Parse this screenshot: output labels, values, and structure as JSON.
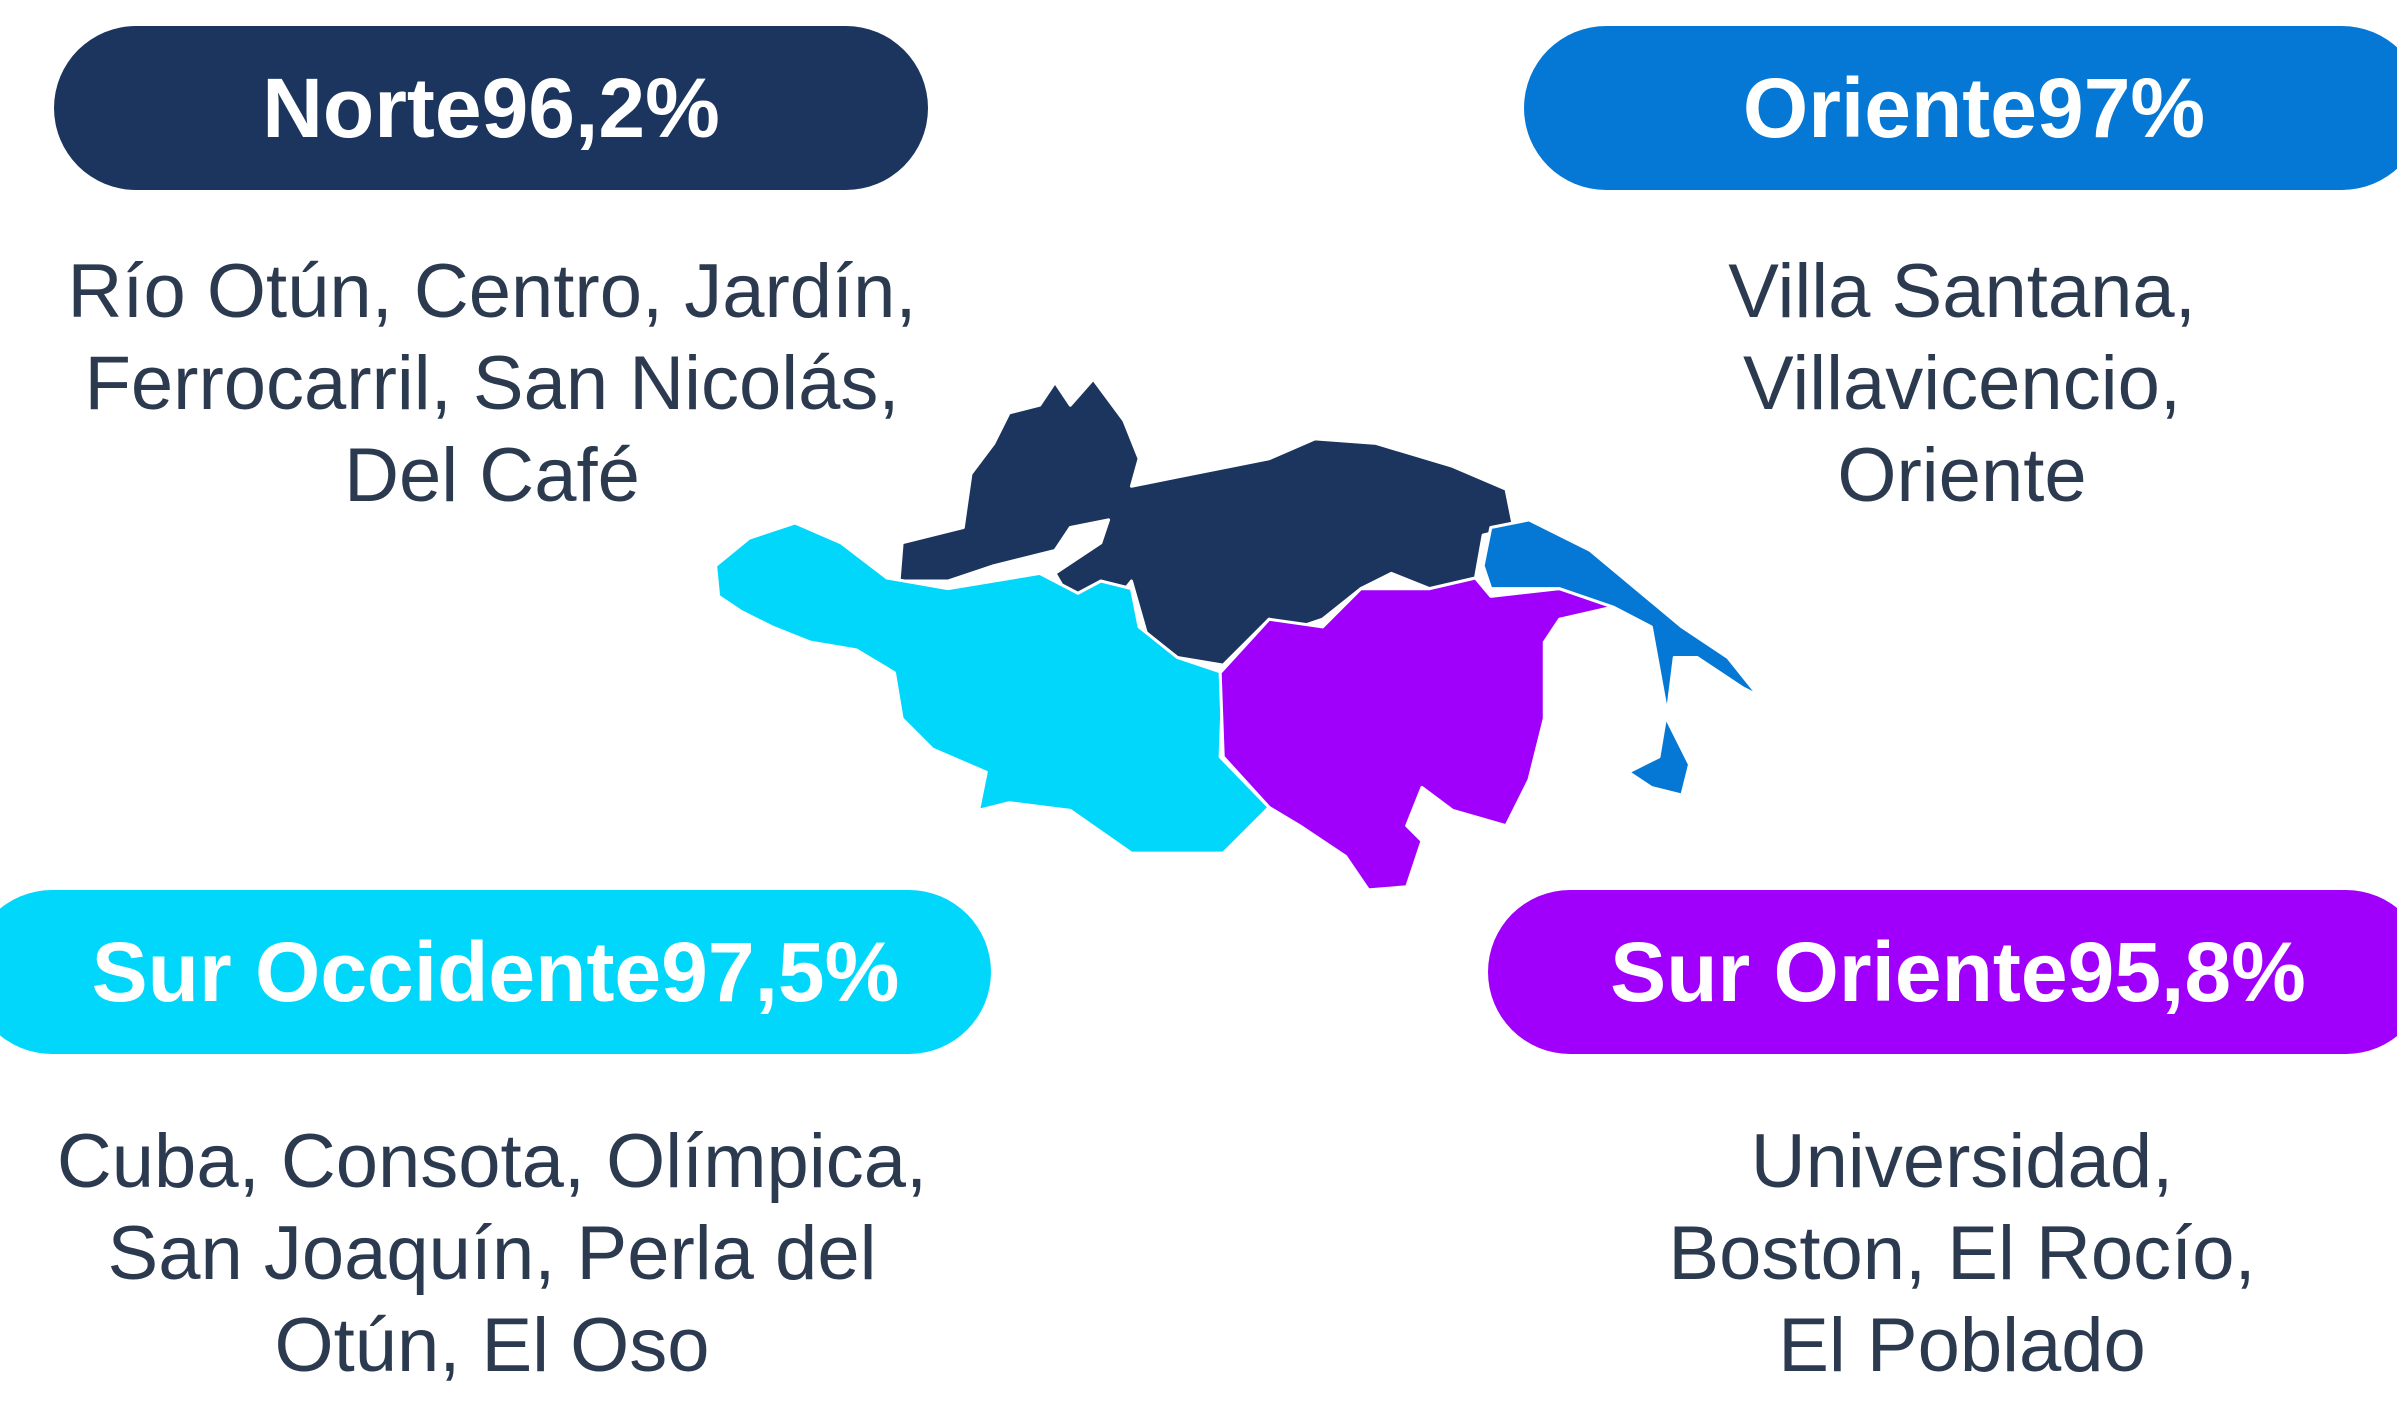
{
  "regions": [
    {
      "name": "Norte",
      "percent": "96,2%",
      "neighborhoods": [
        "Río Otún, Centro, Jardín,",
        "Ferrocarril, San Nicolás,",
        "Del Café"
      ]
    },
    {
      "name": "Oriente",
      "percent": "97%",
      "neighborhoods": [
        "Villa Santana,",
        "Villavicencio,",
        "Oriente"
      ]
    },
    {
      "name": "Sur Occidente",
      "percent": "97,5%",
      "neighborhoods": [
        "Cuba, Consota, Olímpica,",
        "San Joaquín, Perla del",
        "Otún, El Oso"
      ]
    },
    {
      "name": "Sur Oriente",
      "percent": "95,8%",
      "neighborhoods": [
        "Universidad,",
        "Boston, El Rocío,",
        "El Poblado"
      ]
    }
  ]
}
